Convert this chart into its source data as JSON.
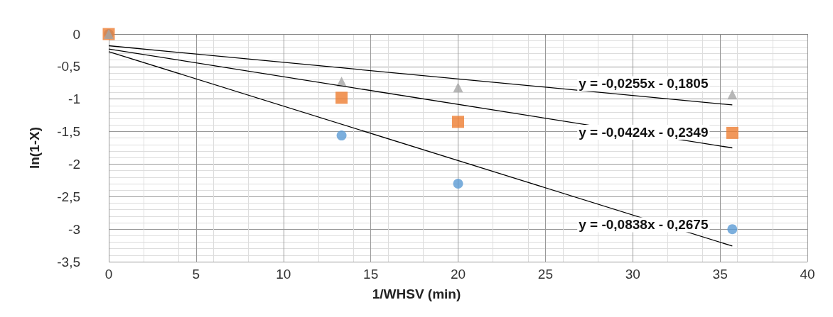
{
  "chart_data": {
    "type": "scatter",
    "xlabel": "1/WHSV (min)",
    "ylabel": "ln(1-X)",
    "xlim": [
      0,
      40
    ],
    "xticks": [
      0,
      5,
      10,
      15,
      20,
      25,
      30,
      35,
      40
    ],
    "ylim": [
      -3.5,
      0
    ],
    "yticks": [
      0,
      {
        "value": -0.5,
        "label": "-0,5"
      },
      {
        "value": -1,
        "label": "-1"
      },
      {
        "value": -1.5,
        "label": "-1,5"
      },
      {
        "value": -2,
        "label": "-2"
      },
      {
        "value": -2.5,
        "label": "-2,5"
      },
      {
        "value": -3,
        "label": "-3"
      },
      {
        "value": -3.5,
        "label": "-3,5"
      }
    ],
    "grid": true,
    "series": [
      {
        "color": "#5b9bd5",
        "marker": "circle",
        "x": [
          0,
          13.33,
          20,
          35.7
        ],
        "values": [
          0,
          -1.56,
          -2.3,
          -3.0
        ]
      },
      {
        "color": "#ed7d31",
        "marker": "square",
        "x": [
          0,
          13.33,
          20,
          35.7
        ],
        "values": [
          0,
          -0.98,
          -1.35,
          -1.52
        ]
      },
      {
        "color": "#a5a5a5",
        "marker": "triangle",
        "x": [
          0,
          13.33,
          20,
          35.7
        ],
        "values": [
          0,
          -0.73,
          -0.82,
          -0.93
        ]
      },
      {
        "type": "line",
        "color": "#000000",
        "marker": "none",
        "x": [
          0,
          35.7
        ],
        "values": [
          -0.27,
          -3.26
        ]
      },
      {
        "type": "line",
        "color": "#000000",
        "marker": "none",
        "x": [
          0,
          35.7
        ],
        "values": [
          -0.23,
          -1.75
        ]
      },
      {
        "type": "line",
        "color": "#000000",
        "marker": "none",
        "x": [
          0,
          35.7
        ],
        "values": [
          -0.18,
          -1.09
        ]
      }
    ],
    "annotations": [
      "y = -0,0838x - 0,2675",
      "y = -0,0424x - 0,2349",
      "y = -0,0255x - 0,1805"
    ]
  }
}
